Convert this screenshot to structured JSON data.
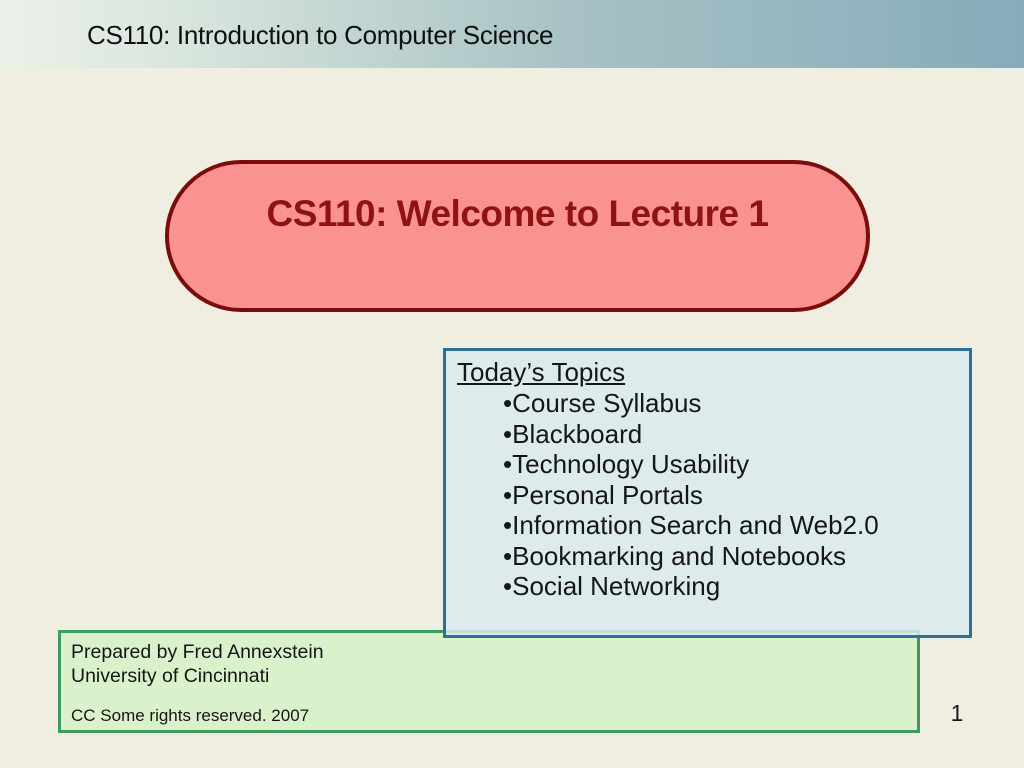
{
  "slide": {
    "header": {
      "title": "CS110: Introduction to Computer Science"
    },
    "banner": {
      "title": "CS110: Welcome to Lecture 1"
    },
    "topics": {
      "heading": "Today’s Topics",
      "bullet_char": "•",
      "items": [
        "Course Syllabus",
        "Blackboard",
        "Technology Usability",
        "Personal Portals",
        "Information Search and Web2.0",
        "Bookmarking and Notebooks",
        "Social Networking"
      ]
    },
    "credits": {
      "line1": "Prepared by Fred Annexstein",
      "line2": "University of Cincinnati",
      "license": "CC Some rights reserved. 2007"
    },
    "page_number": "1",
    "colors": {
      "header_gradient_start": "#ecf1e9",
      "header_gradient_end": "#87abbb",
      "slide_background": "#f0eee0",
      "banner_fill": "#fa9292",
      "banner_border": "#7c0c0c",
      "banner_text": "#901313",
      "topics_fill": "#dcebee",
      "topics_border": "#2d6f96",
      "credits_fill": "#daf2cc",
      "credits_border": "#3a9c5e",
      "body_text": "#161616"
    }
  }
}
